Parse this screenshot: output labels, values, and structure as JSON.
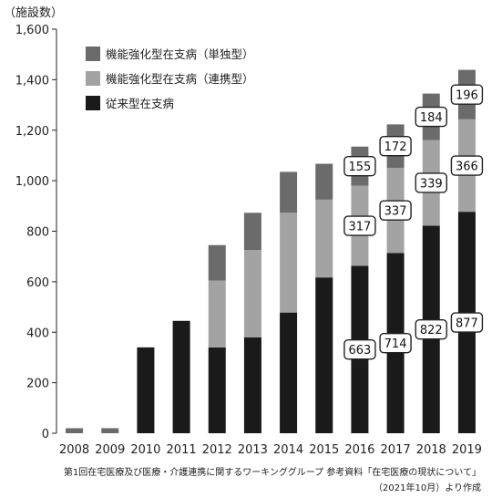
{
  "chart_data": {
    "type": "bar",
    "stacked": true,
    "ylabel": "（施設数）",
    "ylim": [
      0,
      1600
    ],
    "yticks": [
      "0",
      "200",
      "400",
      "600",
      "800",
      "1,000",
      "1,200",
      "1,400",
      "1,600"
    ],
    "categories": [
      "2008",
      "2009",
      "2010",
      "2011",
      "2012",
      "2013",
      "2014",
      "2015",
      "2016",
      "2017",
      "2018",
      "2019"
    ],
    "series": [
      {
        "name": "従来型在支病",
        "color": "#1a1a1a",
        "values": [
          0,
          0,
          340,
          445,
          340,
          380,
          478,
          617,
          663,
          714,
          822,
          877
        ]
      },
      {
        "name": "機能強化型在支病（連携型）",
        "color": "#a3a3a3",
        "values": [
          0,
          0,
          0,
          0,
          265,
          345,
          395,
          308,
          317,
          337,
          339,
          366
        ]
      },
      {
        "name": "機能強化型在支病（単独型）",
        "color": "#6b6b6b",
        "values": [
          20,
          20,
          0,
          0,
          140,
          148,
          162,
          142,
          155,
          172,
          184,
          196
        ]
      }
    ],
    "data_labels": {
      "2016": [
        "663",
        "317",
        "155"
      ],
      "2017": [
        "714",
        "337",
        "172"
      ],
      "2018": [
        "822",
        "339",
        "184"
      ],
      "2019": [
        "877",
        "366",
        "196"
      ]
    },
    "legend_position": "top-left"
  },
  "source": {
    "line1": "第1回在宅医療及び医療・介護連携に関するワーキンググループ 参考資料「在宅医療の現状について」",
    "line2": "（2021年10月）より作成"
  }
}
